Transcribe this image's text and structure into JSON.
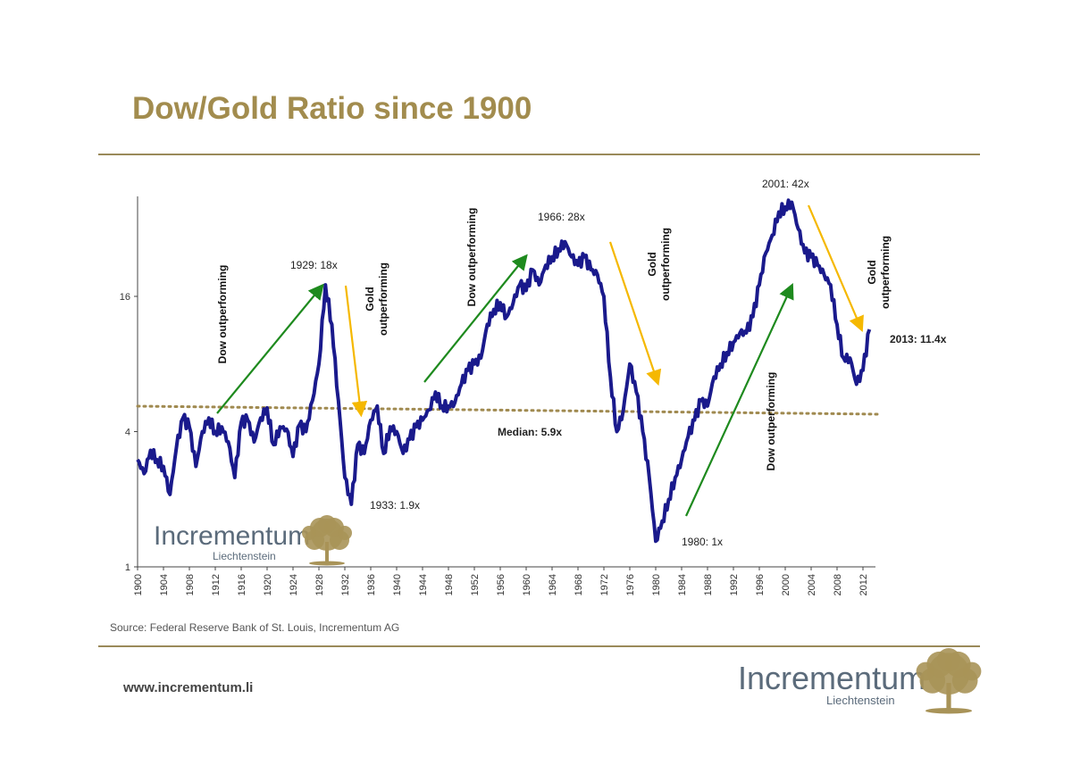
{
  "title": "Dow/Gold Ratio since 1900",
  "source": "Source: Federal Reserve Bank of St. Louis, Incrementum AG",
  "url": "www.incrementum.li",
  "logo": {
    "name": "Incrementum",
    "sub": "Liechtenstein"
  },
  "colors": {
    "title": "#a28c4e",
    "line": "#1a1a8c",
    "up_arrow": "#1e8a1e",
    "down_arrow": "#f5b800",
    "median": "#a08a50",
    "logo_tree": "#a89358"
  },
  "chart_data": {
    "type": "line",
    "title": "",
    "xlabel": "",
    "ylabel": "",
    "y_scale": "log2",
    "ylim": [
      1,
      50
    ],
    "xlim": [
      1900,
      2014
    ],
    "yticks": [
      1,
      4,
      16
    ],
    "ytick_labels": [
      "1",
      "4",
      "16"
    ],
    "xticks": [
      1900,
      1904,
      1908,
      1912,
      1916,
      1920,
      1924,
      1928,
      1932,
      1936,
      1940,
      1944,
      1948,
      1952,
      1956,
      1960,
      1964,
      1968,
      1972,
      1976,
      1980,
      1984,
      1988,
      1992,
      1996,
      2000,
      2004,
      2008,
      2012
    ],
    "grid": false,
    "series": [
      {
        "x": [
          1900,
          1901,
          1902,
          1903,
          1904,
          1905,
          1906,
          1907,
          1908,
          1909,
          1910,
          1911,
          1912,
          1913,
          1914,
          1915,
          1916,
          1917,
          1918,
          1919,
          1920,
          1921,
          1922,
          1923,
          1924,
          1925,
          1926,
          1927,
          1928,
          1929,
          1930,
          1931,
          1932,
          1933,
          1934,
          1935,
          1936,
          1937,
          1938,
          1939,
          1940,
          1941,
          1942,
          1943,
          1944,
          1945,
          1946,
          1947,
          1948,
          1949,
          1950,
          1951,
          1952,
          1953,
          1954,
          1955,
          1956,
          1957,
          1958,
          1959,
          1960,
          1961,
          1962,
          1963,
          1964,
          1965,
          1966,
          1967,
          1968,
          1969,
          1970,
          1971,
          1972,
          1973,
          1974,
          1975,
          1976,
          1977,
          1978,
          1979,
          1980,
          1981,
          1982,
          1983,
          1984,
          1985,
          1986,
          1987,
          1988,
          1989,
          1990,
          1991,
          1992,
          1993,
          1994,
          1995,
          1996,
          1997,
          1998,
          1999,
          2000,
          2001,
          2002,
          2003,
          2004,
          2005,
          2006,
          2007,
          2008,
          2009,
          2010,
          2011,
          2012,
          2013
        ],
        "values": [
          3.0,
          2.6,
          3.3,
          3.0,
          2.8,
          2.1,
          3.4,
          4.6,
          4.2,
          2.8,
          4.0,
          4.6,
          4.0,
          4.2,
          3.6,
          2.5,
          4.4,
          4.5,
          3.6,
          4.6,
          5.1,
          3.5,
          4.2,
          4.1,
          3.1,
          4.3,
          4.0,
          5.5,
          8.0,
          18,
          12,
          5.5,
          2.5,
          1.9,
          3.5,
          3.2,
          4.5,
          5.2,
          3.2,
          4.2,
          4.0,
          3.2,
          3.7,
          4.2,
          4.5,
          5.0,
          6.0,
          5.2,
          5.2,
          5.4,
          6.5,
          7.5,
          8.0,
          8.5,
          12,
          14,
          15,
          13,
          15,
          18,
          17,
          21,
          18,
          22,
          24,
          26,
          28,
          24,
          22,
          24,
          21,
          20,
          16,
          7,
          4,
          5,
          8,
          6,
          4,
          2.5,
          1.3,
          1.6,
          2.0,
          2.5,
          3.0,
          3.8,
          4.5,
          5.5,
          5.2,
          7,
          8,
          9,
          10,
          11,
          11,
          13,
          18,
          25,
          30,
          38,
          40,
          42,
          32,
          25,
          24,
          22,
          20,
          18,
          12,
          8.5,
          8.5,
          6.5,
          7.5,
          11.4
        ]
      }
    ],
    "median": {
      "value": 5.9,
      "label": "Median: 5.9x"
    },
    "annotations": [
      {
        "id": "a1929",
        "text": "1929: 18x"
      },
      {
        "id": "a1933",
        "text": "1933: 1.9x"
      },
      {
        "id": "a1966",
        "text": "1966: 28x"
      },
      {
        "id": "a1980",
        "text": "1980: 1x"
      },
      {
        "id": "a2001",
        "text": "2001: 42x"
      },
      {
        "id": "a2013",
        "text": "2013: 11.4x"
      }
    ],
    "phase_labels": {
      "dow": "Dow outperforming",
      "gold_1": "Gold",
      "gold_2": "outperforming"
    }
  }
}
